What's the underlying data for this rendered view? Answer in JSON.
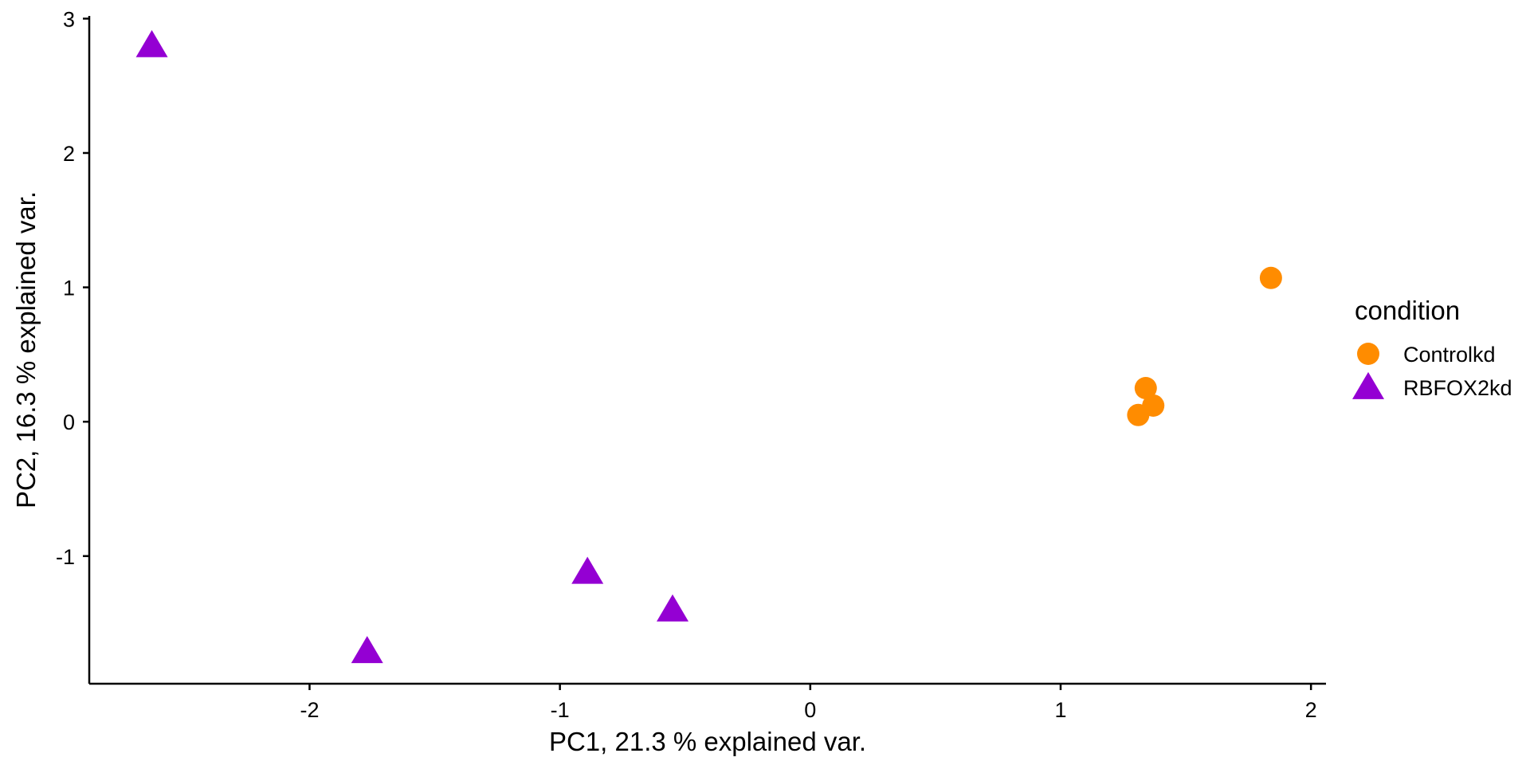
{
  "chart_data": {
    "type": "scatter",
    "xlabel": "PC1, 21.3 % explained var.",
    "ylabel": "PC2, 16.3 % explained var.",
    "xlim": [
      -2.88,
      2.06
    ],
    "ylim": [
      -1.95,
      3.02
    ],
    "x_ticks": [
      -2,
      -1,
      0,
      1,
      2
    ],
    "y_ticks": [
      -1,
      0,
      1,
      2,
      3
    ],
    "x_tick_labels": [
      "-2",
      "-1",
      "0",
      "1",
      "2"
    ],
    "y_tick_labels": [
      "-1",
      "0",
      "1",
      "2",
      "3"
    ],
    "grid": false,
    "legend": {
      "title": "condition",
      "placement": "right"
    },
    "series": [
      {
        "name": "Controlkd",
        "marker": "circle",
        "color": "#FF8C00",
        "points": [
          {
            "x": 1.84,
            "y": 1.07
          },
          {
            "x": 1.34,
            "y": 0.25
          },
          {
            "x": 1.37,
            "y": 0.12
          },
          {
            "x": 1.31,
            "y": 0.05
          }
        ]
      },
      {
        "name": "RBFOX2kd",
        "marker": "triangle",
        "color": "#9400D3",
        "points": [
          {
            "x": -2.63,
            "y": 2.79
          },
          {
            "x": -0.89,
            "y": -1.13
          },
          {
            "x": -0.55,
            "y": -1.41
          },
          {
            "x": -1.77,
            "y": -1.72
          }
        ]
      }
    ]
  }
}
